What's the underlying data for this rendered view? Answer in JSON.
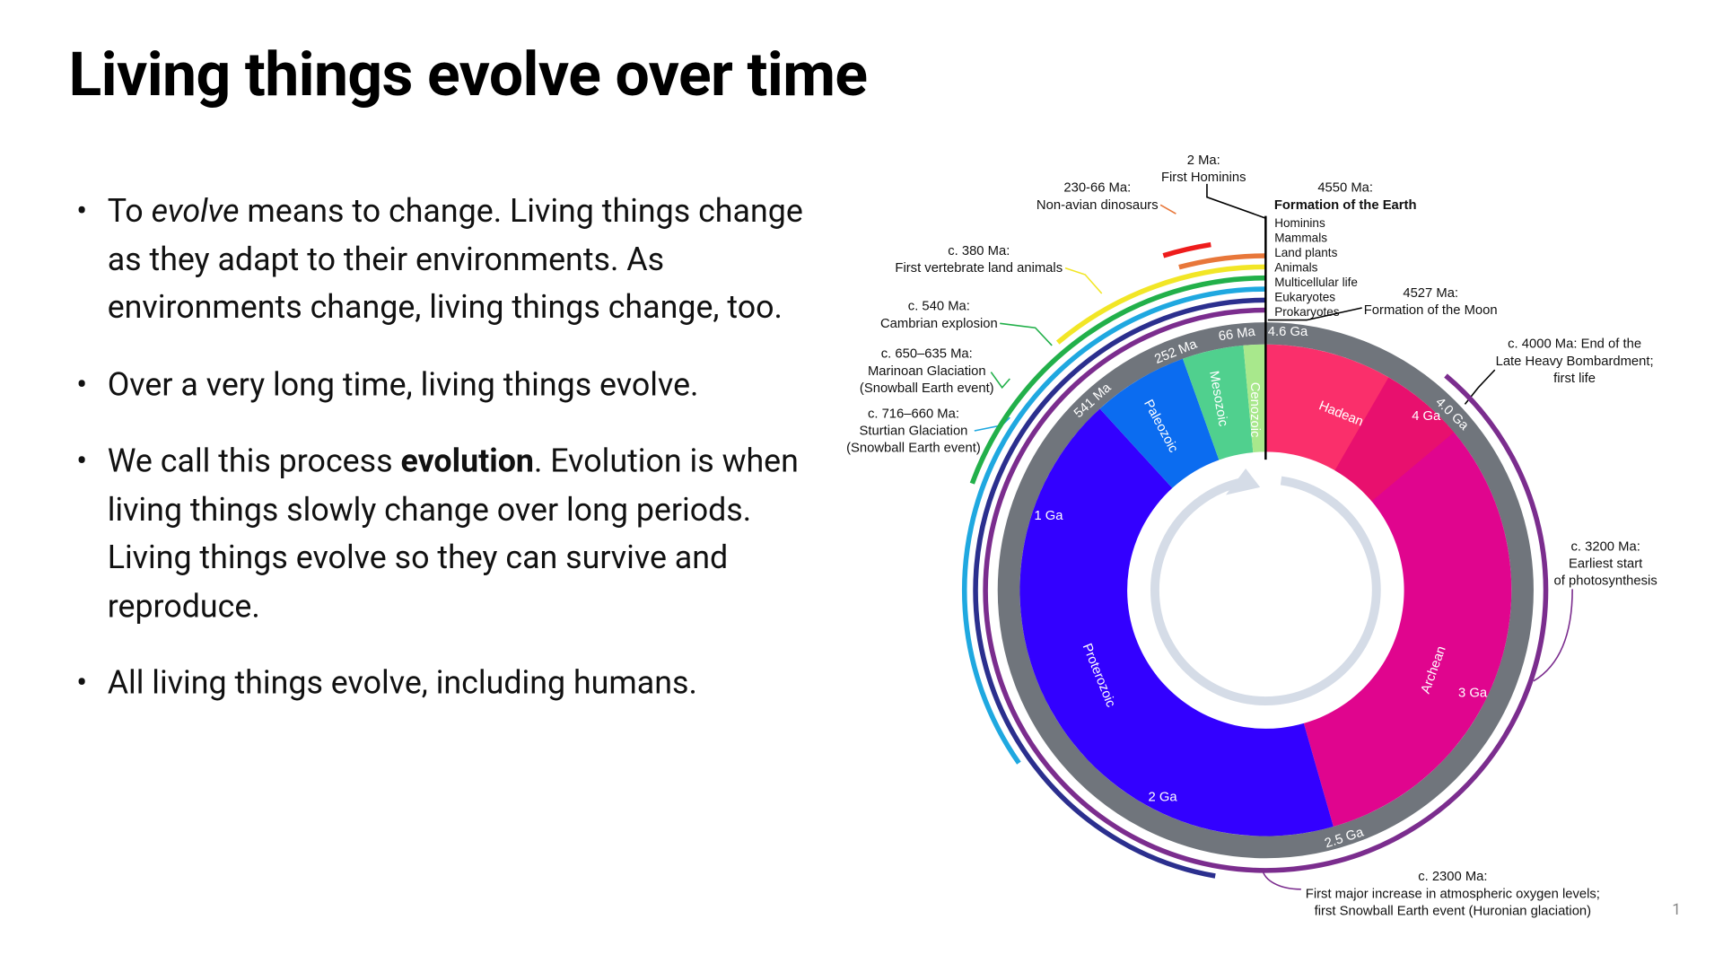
{
  "title": "Living things evolve over time",
  "bullets": [
    [
      "To ",
      "evolve",
      " means to change. Living things change as they adapt to their environments. As environments change, living things change, too."
    ],
    [
      "Over a very long time, living things evolve."
    ],
    [
      "We call this process ",
      "evolution",
      ". Evolution is when living things slowly change over long periods. Living things evolve so they can survive and reproduce."
    ],
    [
      "All living things evolve, including humans."
    ]
  ],
  "diagram": {
    "eras": [
      "Hadean",
      "Archean",
      "Proterozoic",
      "Paleozoic",
      "Mesozoic",
      "Cenozoic"
    ],
    "ring_labels": [
      "4.6 Ga",
      "66 Ma",
      "252 Ma",
      "541 Ma",
      "4.0 Ga",
      "2.5 Ga"
    ],
    "inner_labels": [
      "4 Ga",
      "1 Ga",
      "3 Ga",
      "2 Ga"
    ],
    "lineages": [
      "Hominins",
      "Mammals",
      "Land plants",
      "Animals",
      "Multicellular life",
      "Eukaryotes",
      "Prokaryotes"
    ],
    "annotations": [
      [
        "2 Ma:",
        "First Hominins"
      ],
      [
        "230-66 Ma:",
        "Non-avian dinosaurs"
      ],
      [
        "4550 Ma:",
        "Formation of the Earth"
      ],
      [
        "c. 380 Ma:",
        "First vertebrate land animals"
      ],
      [
        "4527 Ma:",
        "Formation of the Moon"
      ],
      [
        "c. 540 Ma:",
        "Cambrian explosion"
      ],
      [
        "c. 4000 Ma: End of the",
        "Late Heavy Bombardment;",
        "first life"
      ],
      [
        "c. 650–635 Ma:",
        "Marinoan Glaciation",
        "(Snowball Earth event)"
      ],
      [
        "c. 716–660 Ma:",
        "Sturtian Glaciation",
        "(Snowball Earth event)"
      ],
      [
        "c. 3200 Ma:",
        "Earliest start",
        "of photosynthesis"
      ],
      [
        "c. 2300 Ma:",
        "First major increase in atmospheric oxygen levels;",
        "first Snowball Earth event (Huronian glaciation)"
      ]
    ]
  },
  "page_number": "1"
}
